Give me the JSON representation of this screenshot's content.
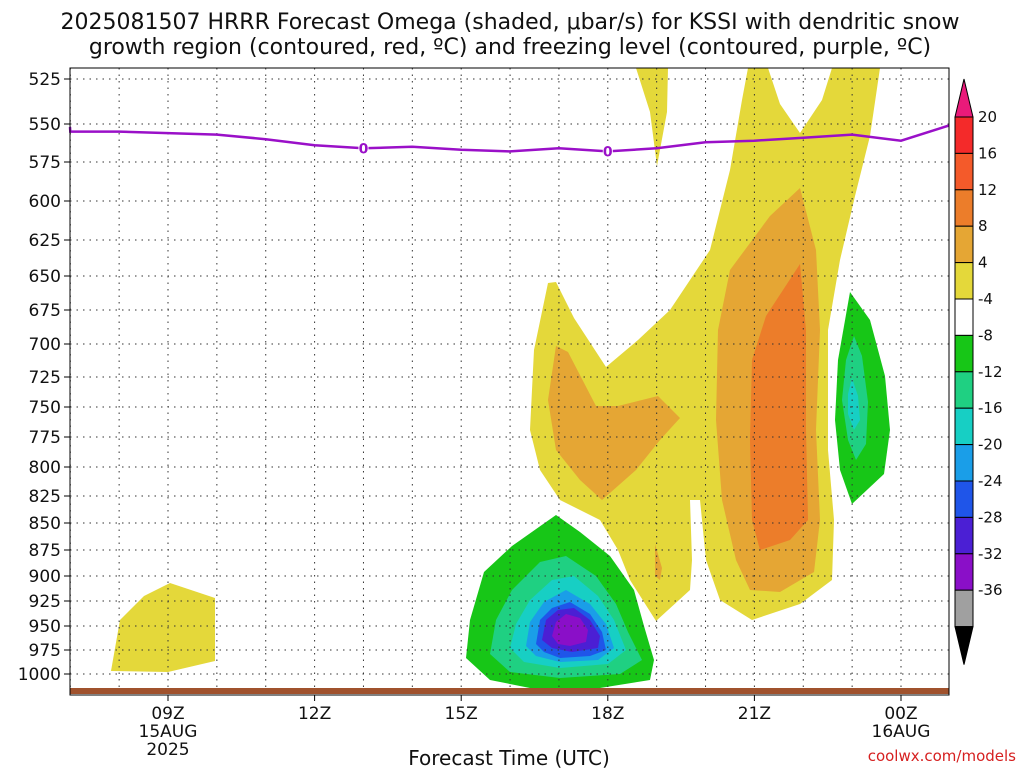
{
  "title_line1": "2025081507 HRRR Forecast Omega (shaded, μbar/s) for KSSI with dendritic snow",
  "title_line2": "growth region (contoured, red, ºC) and freezing level (contoured, purple, ºC)",
  "credit": "coolwx.com/models",
  "chart_data": {
    "type": "contour",
    "xlabel": "Forecast Time (UTC)",
    "ylabel": "",
    "xlim": [
      6,
      25
    ],
    "ylim": [
      1000,
      525
    ],
    "x_ticks": [
      {
        "x": 9,
        "lines": [
          "09Z",
          "15AUG",
          "2025"
        ]
      },
      {
        "x": 12,
        "lines": [
          "12Z"
        ]
      },
      {
        "x": 15,
        "lines": [
          "15Z"
        ]
      },
      {
        "x": 18,
        "lines": [
          "18Z"
        ]
      },
      {
        "x": 21,
        "lines": [
          "21Z"
        ]
      },
      {
        "x": 24,
        "lines": [
          "00Z",
          "16AUG"
        ]
      }
    ],
    "y_ticks": [
      525,
      550,
      575,
      600,
      625,
      650,
      675,
      700,
      725,
      750,
      775,
      800,
      825,
      850,
      875,
      900,
      925,
      950,
      975,
      1000
    ],
    "grid": true,
    "colorbar": {
      "levels": [
        "20",
        "16",
        "12",
        "8",
        "4",
        "-4",
        "-8",
        "-12",
        "-16",
        "-20",
        "-24",
        "-28",
        "-32",
        "-36"
      ],
      "colors": [
        "#ea1a7a",
        "#f42a2a",
        "#f45a2a",
        "#ec7d2a",
        "#e5a634",
        "#e4d83a",
        "#ffffff",
        "#17c617",
        "#1fd082",
        "#17cfc4",
        "#1a9ee8",
        "#1f55e9",
        "#4b1fd4",
        "#8a0fc8",
        "#a0a0a0",
        "#000000"
      ]
    },
    "freezing_level": {
      "label": "0",
      "color": "#9a10c8",
      "x": [
        6,
        7,
        8,
        9,
        10,
        11,
        12,
        13,
        14,
        15,
        16,
        17,
        18,
        19,
        20,
        21,
        22,
        23,
        24,
        25
      ],
      "p": [
        552,
        555,
        555,
        556,
        557,
        560,
        564,
        566,
        565,
        567,
        568,
        566,
        568,
        566,
        562,
        561,
        559,
        557,
        561,
        551
      ]
    },
    "omega_regions": [
      {
        "name": "weak ascent near 09Z",
        "range": "4 to 8"
      },
      {
        "name": "ascent 16Z-19Z mid levels",
        "range": "4 to 12"
      },
      {
        "name": "ascent 20Z-23Z",
        "range": "4 to 16"
      },
      {
        "name": "descent 16Z-19Z low levels",
        "range": "-4 to -32"
      },
      {
        "name": "descent near 23Z",
        "range": "-4 to -12"
      }
    ]
  }
}
